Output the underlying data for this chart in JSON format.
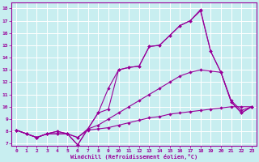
{
  "xlabel": "Windchill (Refroidissement éolien,°C)",
  "xlim": [
    -0.5,
    23.5
  ],
  "ylim": [
    6.8,
    18.5
  ],
  "xticks": [
    0,
    1,
    2,
    3,
    4,
    5,
    6,
    7,
    8,
    9,
    10,
    11,
    12,
    13,
    14,
    15,
    16,
    17,
    18,
    19,
    20,
    21,
    22,
    23
  ],
  "yticks": [
    7,
    8,
    9,
    10,
    11,
    12,
    13,
    14,
    15,
    16,
    17,
    18
  ],
  "bg_color": "#c8eef0",
  "line_color": "#990099",
  "grid_color": "#ffffff",
  "lines": [
    {
      "x": [
        0,
        1,
        2,
        3,
        4,
        5,
        6,
        7,
        8,
        9,
        10,
        11,
        12,
        13,
        14,
        15,
        16,
        17,
        18,
        19,
        20,
        21,
        22,
        23
      ],
      "y": [
        8.1,
        7.8,
        7.5,
        7.8,
        7.8,
        7.8,
        7.5,
        8.1,
        8.2,
        8.3,
        8.5,
        8.7,
        8.9,
        9.1,
        9.2,
        9.4,
        9.5,
        9.6,
        9.7,
        9.8,
        9.9,
        10.0,
        10.0,
        10.0
      ]
    },
    {
      "x": [
        0,
        1,
        2,
        3,
        4,
        5,
        6,
        7,
        8,
        9,
        10,
        11,
        12,
        13,
        14,
        15,
        16,
        17,
        18,
        19,
        20,
        21,
        22,
        23
      ],
      "y": [
        8.1,
        7.8,
        7.5,
        7.8,
        7.8,
        7.8,
        7.5,
        8.2,
        8.5,
        9.0,
        9.5,
        10.0,
        10.5,
        11.0,
        11.5,
        12.0,
        12.5,
        12.8,
        13.0,
        12.9,
        12.8,
        10.5,
        9.7,
        10.0
      ]
    },
    {
      "x": [
        0,
        1,
        2,
        3,
        4,
        5,
        6,
        7,
        8,
        9,
        10,
        11,
        12,
        13,
        14,
        15,
        16,
        17,
        18,
        19,
        20,
        21,
        22,
        23
      ],
      "y": [
        8.1,
        7.8,
        7.5,
        7.8,
        8.0,
        7.8,
        6.9,
        8.2,
        9.5,
        9.8,
        13.0,
        13.2,
        13.3,
        14.9,
        15.0,
        15.8,
        16.6,
        17.0,
        17.8,
        14.5,
        12.8,
        10.4,
        9.5,
        10.0
      ]
    },
    {
      "x": [
        0,
        1,
        2,
        3,
        4,
        5,
        6,
        7,
        8,
        9,
        10,
        11,
        12,
        13,
        14,
        15,
        16,
        17,
        18,
        19,
        20,
        21,
        22,
        23
      ],
      "y": [
        8.1,
        7.8,
        7.5,
        7.8,
        8.0,
        7.8,
        6.9,
        8.2,
        9.5,
        11.5,
        13.0,
        13.2,
        13.3,
        14.9,
        15.0,
        15.8,
        16.6,
        17.0,
        17.9,
        14.5,
        12.8,
        10.4,
        9.5,
        10.0
      ]
    }
  ]
}
